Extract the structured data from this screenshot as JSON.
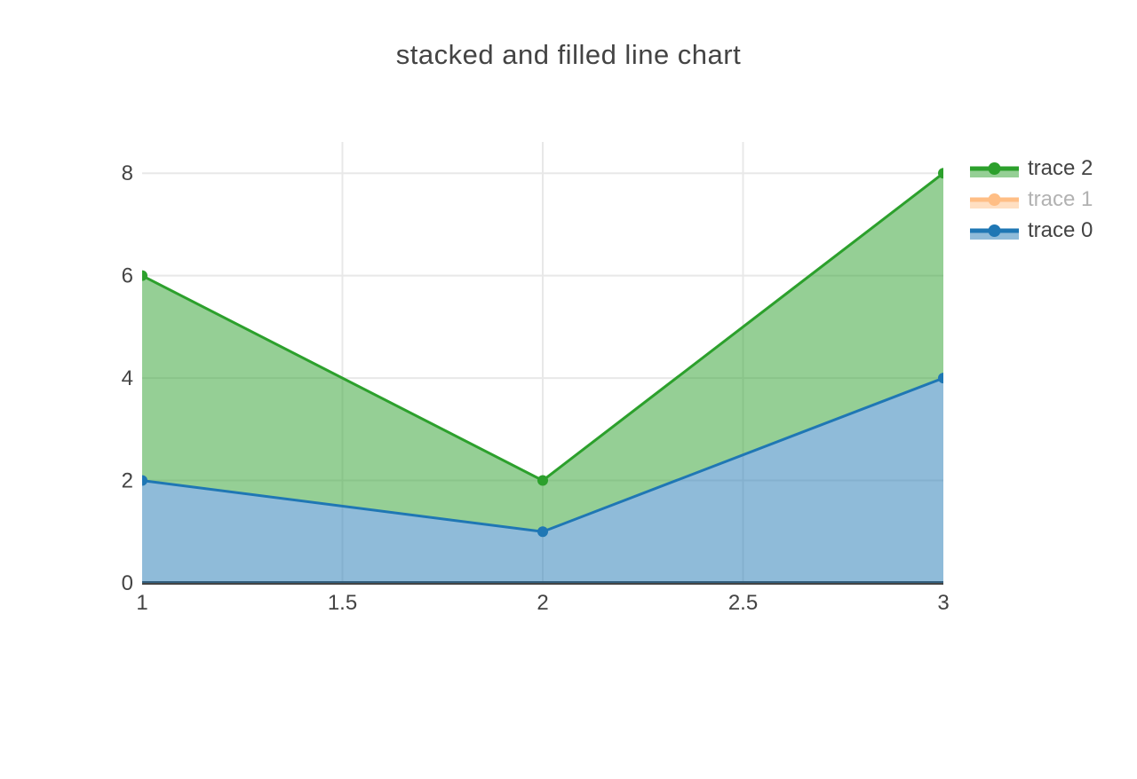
{
  "title": {
    "text": "stacked and filled line chart",
    "color": "#444444"
  },
  "chart_data": {
    "type": "area",
    "title": "stacked and filled line chart",
    "stacking": "stacked, each trace filled to the previous trace (tonexty)",
    "x": [
      1,
      2,
      3
    ],
    "series": [
      {
        "name": "trace 0",
        "color": "#1f77b4",
        "values": [
          2,
          1,
          4
        ],
        "stack_top": [
          2,
          1,
          4
        ],
        "visible": true
      },
      {
        "name": "trace 1",
        "color": "#ff7f0e",
        "values": null,
        "stack_top": null,
        "visible": false
      },
      {
        "name": "trace 2",
        "color": "#2ca02c",
        "values": [
          4,
          1,
          4
        ],
        "stack_top": [
          6,
          2,
          8
        ],
        "visible": true
      }
    ],
    "x_tick_labels": [
      "1",
      "1.5",
      "2",
      "2.5",
      "3"
    ],
    "x_tick_values": [
      1,
      1.5,
      2,
      2.5,
      3
    ],
    "y_tick_labels": [
      "0",
      "2",
      "4",
      "6",
      "8"
    ],
    "y_tick_values": [
      0,
      2,
      4,
      6,
      8
    ],
    "x_range": [
      1,
      3
    ],
    "y_range": [
      0,
      8.61
    ],
    "grid": true,
    "zeroline": true,
    "fill_opacity": 0.5,
    "line_width": 3,
    "marker_size": 12,
    "legend_position": "right",
    "legend_order": [
      "trace 2",
      "trace 1",
      "trace 0"
    ]
  },
  "legend": {
    "items": [
      {
        "label": "trace 2",
        "color": "#2ca02c",
        "muted": false
      },
      {
        "label": "trace 1",
        "color": "#ff7f0e",
        "muted": true
      },
      {
        "label": "trace 0",
        "color": "#1f77b4",
        "muted": false
      }
    ],
    "text_color": "#444444",
    "muted_text_color": "#b2b2b2"
  },
  "axes": {
    "tick_color": "#444444",
    "grid_color": "#e8e8e8",
    "zeroline_color": "#444444",
    "plot_background": "#ffffff"
  }
}
